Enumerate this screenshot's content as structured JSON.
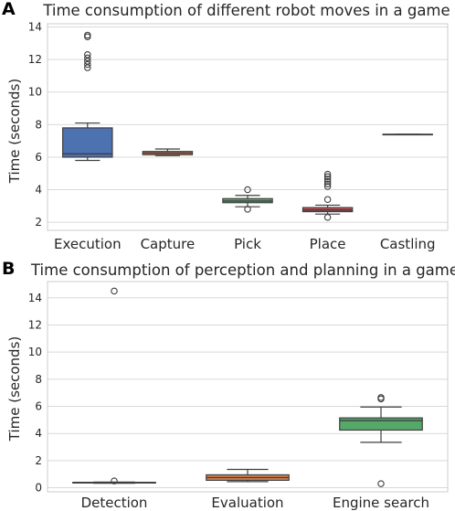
{
  "chart_data": [
    {
      "panel_label": "A",
      "type": "box",
      "title": "Time consumption of different robot moves in a game",
      "xlabel": "",
      "ylabel": "Time (seconds)",
      "ylim": [
        1.5,
        14.2
      ],
      "yticks": [
        2,
        4,
        6,
        8,
        10,
        12,
        14
      ],
      "grid": "horizontal",
      "categories": [
        "Execution",
        "Capture",
        "Pick",
        "Place",
        "Castling"
      ],
      "colors": [
        "#4c72b0",
        "#dd8452",
        "#55a868",
        "#c44e52",
        "#8172b3"
      ],
      "boxes": [
        {
          "category": "Execution",
          "whisker_low": 5.8,
          "q1": 6.0,
          "median": 6.2,
          "q3": 7.8,
          "whisker_high": 8.1,
          "outliers": [
            11.5,
            11.7,
            11.9,
            12.1,
            12.3,
            13.4,
            13.5
          ]
        },
        {
          "category": "Capture",
          "whisker_low": 6.1,
          "q1": 6.15,
          "median": 6.25,
          "q3": 6.35,
          "whisker_high": 6.5,
          "outliers": []
        },
        {
          "category": "Pick",
          "whisker_low": 2.95,
          "q1": 3.2,
          "median": 3.3,
          "q3": 3.45,
          "whisker_high": 3.65,
          "outliers": [
            2.8,
            4.0
          ]
        },
        {
          "category": "Place",
          "whisker_low": 2.5,
          "q1": 2.65,
          "median": 2.75,
          "q3": 2.9,
          "whisker_high": 3.05,
          "outliers": [
            2.3,
            3.4,
            4.2,
            4.35,
            4.5,
            4.65,
            4.8,
            4.95
          ]
        },
        {
          "category": "Castling",
          "whisker_low": 7.4,
          "q1": 7.4,
          "median": 7.4,
          "q3": 7.4,
          "whisker_high": 7.4,
          "outliers": []
        }
      ]
    },
    {
      "panel_label": "B",
      "type": "box",
      "title": "Time consumption of perception and planning in a game",
      "xlabel": "",
      "ylabel": "Time (seconds)",
      "ylim": [
        -0.3,
        15.2
      ],
      "yticks": [
        0,
        2,
        4,
        6,
        8,
        10,
        12,
        14
      ],
      "grid": "horizontal",
      "categories": [
        "Detection",
        "Evaluation",
        "Engine search"
      ],
      "colors": [
        "#4c72b0",
        "#dd8452",
        "#55a868"
      ],
      "boxes": [
        {
          "category": "Detection",
          "whisker_low": 0.33,
          "q1": 0.35,
          "median": 0.38,
          "q3": 0.4,
          "whisker_high": 0.42,
          "outliers": [
            0.5,
            14.5
          ]
        },
        {
          "category": "Evaluation",
          "whisker_low": 0.45,
          "q1": 0.55,
          "median": 0.75,
          "q3": 0.95,
          "whisker_high": 1.35,
          "outliers": []
        },
        {
          "category": "Engine search",
          "whisker_low": 3.35,
          "q1": 4.25,
          "median": 4.95,
          "q3": 5.15,
          "whisker_high": 5.95,
          "outliers": [
            0.3,
            6.55,
            6.65
          ]
        }
      ]
    }
  ]
}
